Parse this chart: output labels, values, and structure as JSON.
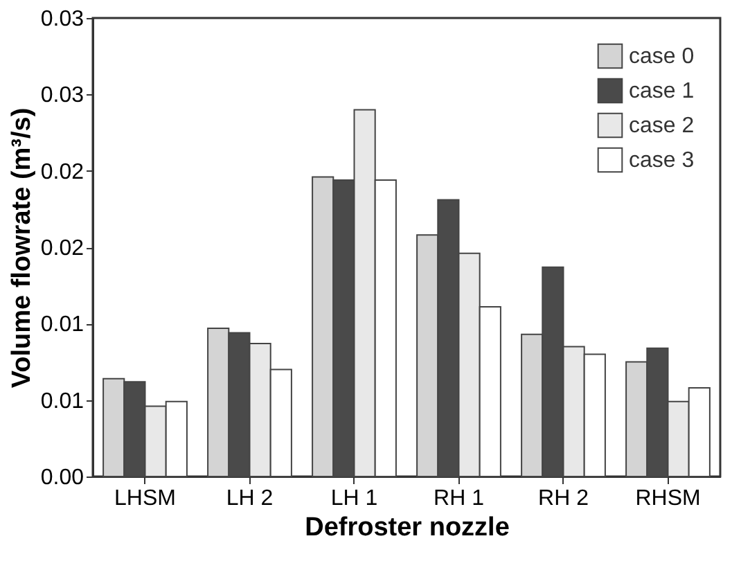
{
  "chart_data": {
    "type": "bar",
    "xlabel": "Defroster nozzle",
    "ylabel": "Volume flowrate (m³/s)",
    "categories": [
      "LHSM",
      "LH 2",
      "LH 1",
      "RH 1",
      "RH 2",
      "RHSM"
    ],
    "series": [
      {
        "name": "case 0",
        "color": "#d4d4d4",
        "values": [
          0.0064,
          0.0097,
          0.0196,
          0.0158,
          0.0093,
          0.0075
        ]
      },
      {
        "name": "case 1",
        "color": "#4a4a4a",
        "values": [
          0.0062,
          0.0094,
          0.0194,
          0.0181,
          0.0137,
          0.0084
        ]
      },
      {
        "name": "case 2",
        "color": "#e8e8e8",
        "values": [
          0.0046,
          0.0087,
          0.024,
          0.0146,
          0.0085,
          0.0049
        ]
      },
      {
        "name": "case 3",
        "color": "#ffffff",
        "values": [
          0.0049,
          0.007,
          0.0194,
          0.0111,
          0.008,
          0.0058
        ]
      }
    ],
    "ylim": [
      0,
      0.03
    ],
    "yticks": [
      {
        "value": 0,
        "label": "0.00"
      },
      {
        "value": 0.005,
        "label": "0.01"
      },
      {
        "value": 0.01,
        "label": "0.01"
      },
      {
        "value": 0.015,
        "label": "0.02"
      },
      {
        "value": 0.02,
        "label": "0.02"
      },
      {
        "value": 0.025,
        "label": "0.03"
      },
      {
        "value": 0.03,
        "label": "0.03"
      }
    ],
    "grid": false,
    "legend": "top right"
  }
}
